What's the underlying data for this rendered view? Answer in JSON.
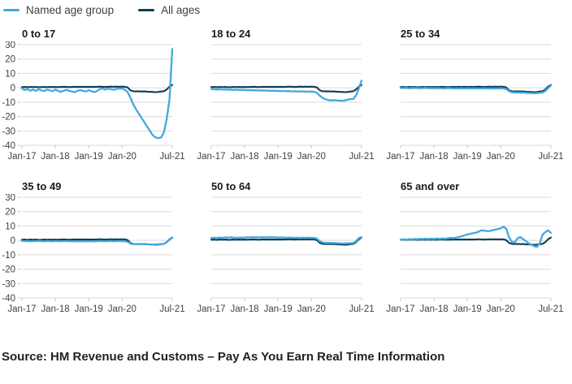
{
  "legend": {
    "items": [
      {
        "label": "Named age group",
        "color": "#41a9dc"
      },
      {
        "label": "All ages",
        "color": "#0e3c57"
      }
    ]
  },
  "source": {
    "text": "Source: HM Revenue and Customs – Pay As You Earn Real Time Information"
  },
  "chart_data": {
    "type": "line",
    "layout": "small-multiples 2x3, shared axes, y labels on first column only",
    "x_start": "Jan-17",
    "x_end": "Jul-21",
    "x_total_months": 54,
    "x_tick_months": [
      0,
      12,
      24,
      36,
      54
    ],
    "x_tick_labels": [
      "Jan-17",
      "Jan-18",
      "Jan-19",
      "Jan-20",
      "Jul-21"
    ],
    "ylim": [
      -40,
      30
    ],
    "y_ticks": [
      30,
      20,
      10,
      0,
      -10,
      -20,
      -30,
      -40
    ],
    "grid": true,
    "colors": {
      "named": "#41a9dc",
      "all_ages": "#0e3c57",
      "gridline": "#d9d9d9",
      "axis_tick": "#c9c9c9"
    },
    "series_note": "monthly values Jan-2017 to Jul-2021, percent change",
    "all_ages": [
      0.5,
      0.6,
      0.4,
      0.6,
      0.5,
      0.6,
      0.4,
      0.5,
      0.6,
      0.5,
      0.6,
      0.5,
      0.6,
      0.5,
      0.6,
      0.7,
      0.6,
      0.5,
      0.6,
      0.7,
      0.6,
      0.7,
      0.6,
      0.7,
      0.6,
      0.7,
      0.6,
      0.7,
      0.8,
      0.7,
      0.6,
      0.7,
      0.8,
      0.7,
      0.8,
      0.7,
      0.8,
      0.7,
      0.2,
      -1.8,
      -2.4,
      -2.5,
      -2.4,
      -2.6,
      -2.5,
      -2.7,
      -2.8,
      -2.9,
      -3.0,
      -2.9,
      -2.6,
      -2.4,
      -1.2,
      0.8,
      2.0
    ],
    "panels": [
      {
        "title": "0 to 17",
        "named": [
          -0.5,
          -1.5,
          -1.0,
          -2.0,
          -1.2,
          -2.2,
          -1.0,
          -1.8,
          -2.3,
          -1.2,
          -1.8,
          -2.4,
          -1.2,
          -2.2,
          -2.8,
          -2.0,
          -1.4,
          -2.2,
          -2.6,
          -3.0,
          -2.0,
          -1.6,
          -2.2,
          -2.6,
          -1.6,
          -2.4,
          -3.0,
          -2.2,
          -0.8,
          -0.6,
          -1.2,
          -0.6,
          -1.0,
          -1.4,
          -0.8,
          -0.4,
          -0.6,
          -1.4,
          -3.0,
          -7.0,
          -11.5,
          -15.0,
          -18.0,
          -21.0,
          -24.0,
          -27.0,
          -30.0,
          -33.0,
          -34.5,
          -35.0,
          -34.5,
          -31.0,
          -22.0,
          -8.0,
          27.0
        ]
      },
      {
        "title": "18 to 24",
        "named": [
          -0.8,
          -1.0,
          -1.2,
          -1.0,
          -1.3,
          -1.1,
          -1.4,
          -1.2,
          -1.5,
          -1.3,
          -1.5,
          -1.4,
          -1.5,
          -1.7,
          -1.6,
          -1.8,
          -1.7,
          -1.9,
          -1.8,
          -2.0,
          -1.9,
          -2.1,
          -2.0,
          -2.2,
          -2.1,
          -2.3,
          -2.2,
          -2.4,
          -2.3,
          -2.5,
          -2.4,
          -2.6,
          -2.5,
          -2.6,
          -2.5,
          -2.7,
          -2.6,
          -2.8,
          -3.5,
          -5.5,
          -7.0,
          -8.0,
          -8.5,
          -8.8,
          -8.6,
          -8.7,
          -8.9,
          -9.0,
          -8.8,
          -8.3,
          -7.9,
          -7.8,
          -5.5,
          -0.5,
          5.0
        ]
      },
      {
        "title": "25 to 34",
        "named": [
          -0.1,
          -0.2,
          -0.1,
          -0.3,
          -0.2,
          -0.1,
          -0.2,
          -0.3,
          -0.2,
          -0.1,
          -0.2,
          -0.3,
          -0.2,
          -0.3,
          -0.2,
          -0.4,
          -0.3,
          -0.2,
          -0.3,
          -0.4,
          -0.3,
          -0.4,
          -0.3,
          -0.4,
          -0.3,
          -0.4,
          -0.3,
          -0.4,
          -0.5,
          -0.4,
          -0.3,
          -0.4,
          -0.5,
          -0.4,
          -0.5,
          -0.4,
          -0.3,
          -0.4,
          -0.9,
          -2.4,
          -3.1,
          -3.3,
          -3.2,
          -3.4,
          -3.3,
          -3.5,
          -3.6,
          -3.7,
          -3.8,
          -3.7,
          -3.5,
          -3.3,
          -2.2,
          -0.2,
          1.6
        ]
      },
      {
        "title": "35 to 49",
        "named": [
          -0.3,
          -0.5,
          -0.4,
          -0.6,
          -0.4,
          -0.5,
          -0.3,
          -0.5,
          -0.6,
          -0.4,
          -0.5,
          -0.6,
          -0.4,
          -0.5,
          -0.6,
          -0.5,
          -0.4,
          -0.6,
          -0.5,
          -0.7,
          -0.5,
          -0.6,
          -0.5,
          -0.7,
          -0.5,
          -0.6,
          -0.7,
          -0.5,
          -0.4,
          -0.5,
          -0.6,
          -0.4,
          -0.5,
          -0.6,
          -0.5,
          -0.4,
          -0.5,
          -0.6,
          -1.0,
          -2.2,
          -2.6,
          -2.6,
          -2.5,
          -2.7,
          -2.6,
          -2.7,
          -2.8,
          -2.9,
          -2.8,
          -2.7,
          -2.6,
          -2.4,
          -1.4,
          0.6,
          1.8
        ]
      },
      {
        "title": "50 to 64",
        "named": [
          1.6,
          1.9,
          1.7,
          2.0,
          1.8,
          2.1,
          1.9,
          2.2,
          2.0,
          1.8,
          2.0,
          1.9,
          2.0,
          2.2,
          2.1,
          2.3,
          2.2,
          2.1,
          2.2,
          2.1,
          2.2,
          2.3,
          2.2,
          2.1,
          2.0,
          2.1,
          2.0,
          1.9,
          2.0,
          1.9,
          1.8,
          1.9,
          1.8,
          1.9,
          1.8,
          1.9,
          1.8,
          1.8,
          1.2,
          -0.6,
          -1.4,
          -1.7,
          -1.6,
          -1.8,
          -1.7,
          -1.9,
          -2.0,
          -2.1,
          -2.1,
          -2.0,
          -1.9,
          -1.8,
          -0.6,
          1.6,
          2.3
        ]
      },
      {
        "title": "65 and over",
        "named": [
          0.5,
          0.8,
          0.6,
          0.9,
          0.7,
          1.0,
          0.8,
          1.1,
          0.9,
          1.2,
          1.0,
          1.2,
          1.0,
          1.3,
          1.1,
          1.4,
          1.2,
          1.5,
          1.8,
          1.6,
          2.0,
          2.4,
          2.9,
          3.5,
          4.2,
          4.6,
          5.0,
          5.4,
          6.0,
          7.0,
          6.8,
          6.5,
          6.6,
          7.0,
          7.5,
          8.0,
          8.5,
          9.5,
          8.0,
          2.0,
          -1.0,
          -1.5,
          1.5,
          2.3,
          1.0,
          -0.5,
          -2.0,
          -3.0,
          -4.0,
          -4.5,
          -2.0,
          4.0,
          5.8,
          7.0,
          5.3
        ]
      }
    ]
  }
}
